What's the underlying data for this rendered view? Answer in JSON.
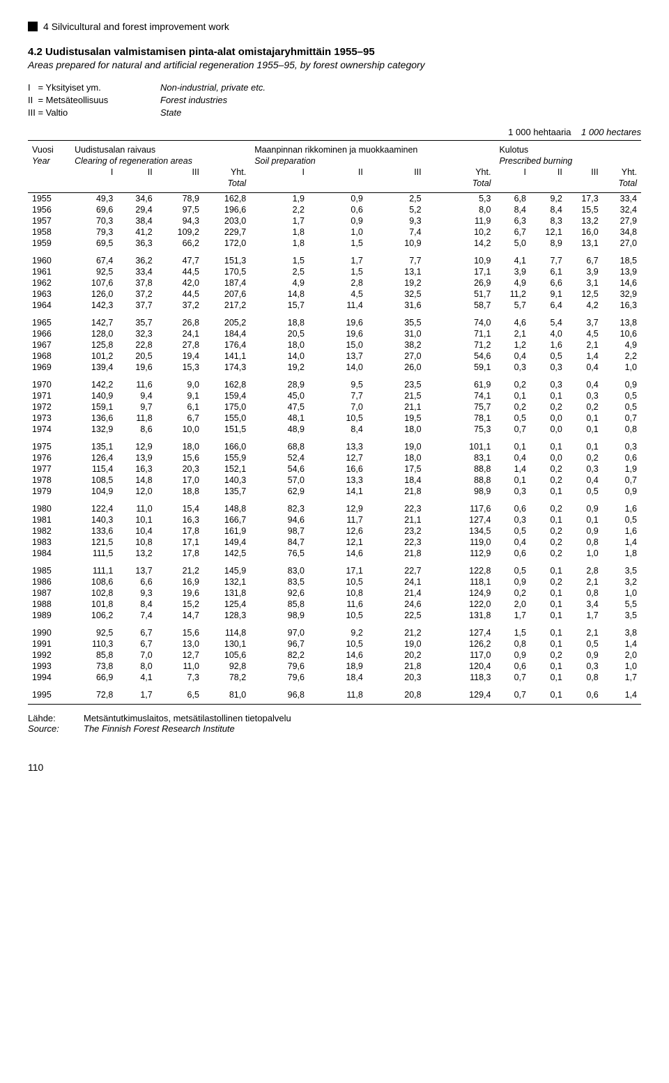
{
  "section": {
    "number": "4",
    "title": "Silvicultural and forest improvement work"
  },
  "table": {
    "number": "4.2",
    "title_fi": "Uudistusalan valmistamisen pinta-alat omistajaryhmittäin 1955–95",
    "title_en": "Areas prepared for natural and artificial regeneration 1955–95, by forest ownership category"
  },
  "legend": {
    "rows": [
      {
        "key": "I   = Yksityiset ym.",
        "val": "Non-industrial, private etc."
      },
      {
        "key": "II  = Metsäteollisuus",
        "val": "Forest industries"
      },
      {
        "key": "III = Valtio",
        "val": "State"
      }
    ]
  },
  "units": {
    "fi": "1 000 hehtaaria",
    "en": "1 000 hectares"
  },
  "header": {
    "year_fi": "Vuosi",
    "year_en": "Year",
    "group1_fi": "Uudistusalan raivaus",
    "group1_en": "Clearing of regeneration areas",
    "group2_fi": "Maanpinnan rikkominen ja muokkaaminen",
    "group2_en": "Soil preparation",
    "group3_fi": "Kulotus",
    "group3_en": "Prescribed burning",
    "cols": [
      "I",
      "II",
      "III",
      "Yht."
    ],
    "total_en": "Total"
  },
  "blocks": [
    [
      [
        "1955",
        "49,3",
        "34,6",
        "78,9",
        "162,8",
        "1,9",
        "0,9",
        "2,5",
        "5,3",
        "6,8",
        "9,2",
        "17,3",
        "33,4"
      ],
      [
        "1956",
        "69,6",
        "29,4",
        "97,5",
        "196,6",
        "2,2",
        "0,6",
        "5,2",
        "8,0",
        "8,4",
        "8,4",
        "15,5",
        "32,4"
      ],
      [
        "1957",
        "70,3",
        "38,4",
        "94,3",
        "203,0",
        "1,7",
        "0,9",
        "9,3",
        "11,9",
        "6,3",
        "8,3",
        "13,2",
        "27,9"
      ],
      [
        "1958",
        "79,3",
        "41,2",
        "109,2",
        "229,7",
        "1,8",
        "1,0",
        "7,4",
        "10,2",
        "6,7",
        "12,1",
        "16,0",
        "34,8"
      ],
      [
        "1959",
        "69,5",
        "36,3",
        "66,2",
        "172,0",
        "1,8",
        "1,5",
        "10,9",
        "14,2",
        "5,0",
        "8,9",
        "13,1",
        "27,0"
      ]
    ],
    [
      [
        "1960",
        "67,4",
        "36,2",
        "47,7",
        "151,3",
        "1,5",
        "1,7",
        "7,7",
        "10,9",
        "4,1",
        "7,7",
        "6,7",
        "18,5"
      ],
      [
        "1961",
        "92,5",
        "33,4",
        "44,5",
        "170,5",
        "2,5",
        "1,5",
        "13,1",
        "17,1",
        "3,9",
        "6,1",
        "3,9",
        "13,9"
      ],
      [
        "1962",
        "107,6",
        "37,8",
        "42,0",
        "187,4",
        "4,9",
        "2,8",
        "19,2",
        "26,9",
        "4,9",
        "6,6",
        "3,1",
        "14,6"
      ],
      [
        "1963",
        "126,0",
        "37,2",
        "44,5",
        "207,6",
        "14,8",
        "4,5",
        "32,5",
        "51,7",
        "11,2",
        "9,1",
        "12,5",
        "32,9"
      ],
      [
        "1964",
        "142,3",
        "37,7",
        "37,2",
        "217,2",
        "15,7",
        "11,4",
        "31,6",
        "58,7",
        "5,7",
        "6,4",
        "4,2",
        "16,3"
      ]
    ],
    [
      [
        "1965",
        "142,7",
        "35,7",
        "26,8",
        "205,2",
        "18,8",
        "19,6",
        "35,5",
        "74,0",
        "4,6",
        "5,4",
        "3,7",
        "13,8"
      ],
      [
        "1966",
        "128,0",
        "32,3",
        "24,1",
        "184,4",
        "20,5",
        "19,6",
        "31,0",
        "71,1",
        "2,1",
        "4,0",
        "4,5",
        "10,6"
      ],
      [
        "1967",
        "125,8",
        "22,8",
        "27,8",
        "176,4",
        "18,0",
        "15,0",
        "38,2",
        "71,2",
        "1,2",
        "1,6",
        "2,1",
        "4,9"
      ],
      [
        "1968",
        "101,2",
        "20,5",
        "19,4",
        "141,1",
        "14,0",
        "13,7",
        "27,0",
        "54,6",
        "0,4",
        "0,5",
        "1,4",
        "2,2"
      ],
      [
        "1969",
        "139,4",
        "19,6",
        "15,3",
        "174,3",
        "19,2",
        "14,0",
        "26,0",
        "59,1",
        "0,3",
        "0,3",
        "0,4",
        "1,0"
      ]
    ],
    [
      [
        "1970",
        "142,2",
        "11,6",
        "9,0",
        "162,8",
        "28,9",
        "9,5",
        "23,5",
        "61,9",
        "0,2",
        "0,3",
        "0,4",
        "0,9"
      ],
      [
        "1971",
        "140,9",
        "9,4",
        "9,1",
        "159,4",
        "45,0",
        "7,7",
        "21,5",
        "74,1",
        "0,1",
        "0,1",
        "0,3",
        "0,5"
      ],
      [
        "1972",
        "159,1",
        "9,7",
        "6,1",
        "175,0",
        "47,5",
        "7,0",
        "21,1",
        "75,7",
        "0,2",
        "0,2",
        "0,2",
        "0,5"
      ],
      [
        "1973",
        "136,6",
        "11,8",
        "6,7",
        "155,0",
        "48,1",
        "10,5",
        "19,5",
        "78,1",
        "0,5",
        "0,0",
        "0,1",
        "0,7"
      ],
      [
        "1974",
        "132,9",
        "8,6",
        "10,0",
        "151,5",
        "48,9",
        "8,4",
        "18,0",
        "75,3",
        "0,7",
        "0,0",
        "0,1",
        "0,8"
      ]
    ],
    [
      [
        "1975",
        "135,1",
        "12,9",
        "18,0",
        "166,0",
        "68,8",
        "13,3",
        "19,0",
        "101,1",
        "0,1",
        "0,1",
        "0,1",
        "0,3"
      ],
      [
        "1976",
        "126,4",
        "13,9",
        "15,6",
        "155,9",
        "52,4",
        "12,7",
        "18,0",
        "83,1",
        "0,4",
        "0,0",
        "0,2",
        "0,6"
      ],
      [
        "1977",
        "115,4",
        "16,3",
        "20,3",
        "152,1",
        "54,6",
        "16,6",
        "17,5",
        "88,8",
        "1,4",
        "0,2",
        "0,3",
        "1,9"
      ],
      [
        "1978",
        "108,5",
        "14,8",
        "17,0",
        "140,3",
        "57,0",
        "13,3",
        "18,4",
        "88,8",
        "0,1",
        "0,2",
        "0,4",
        "0,7"
      ],
      [
        "1979",
        "104,9",
        "12,0",
        "18,8",
        "135,7",
        "62,9",
        "14,1",
        "21,8",
        "98,9",
        "0,3",
        "0,1",
        "0,5",
        "0,9"
      ]
    ],
    [
      [
        "1980",
        "122,4",
        "11,0",
        "15,4",
        "148,8",
        "82,3",
        "12,9",
        "22,3",
        "117,6",
        "0,6",
        "0,2",
        "0,9",
        "1,6"
      ],
      [
        "1981",
        "140,3",
        "10,1",
        "16,3",
        "166,7",
        "94,6",
        "11,7",
        "21,1",
        "127,4",
        "0,3",
        "0,1",
        "0,1",
        "0,5"
      ],
      [
        "1982",
        "133,6",
        "10,4",
        "17,8",
        "161,9",
        "98,7",
        "12,6",
        "23,2",
        "134,5",
        "0,5",
        "0,2",
        "0,9",
        "1,6"
      ],
      [
        "1983",
        "121,5",
        "10,8",
        "17,1",
        "149,4",
        "84,7",
        "12,1",
        "22,3",
        "119,0",
        "0,4",
        "0,2",
        "0,8",
        "1,4"
      ],
      [
        "1984",
        "111,5",
        "13,2",
        "17,8",
        "142,5",
        "76,5",
        "14,6",
        "21,8",
        "112,9",
        "0,6",
        "0,2",
        "1,0",
        "1,8"
      ]
    ],
    [
      [
        "1985",
        "111,1",
        "13,7",
        "21,2",
        "145,9",
        "83,0",
        "17,1",
        "22,7",
        "122,8",
        "0,5",
        "0,1",
        "2,8",
        "3,5"
      ],
      [
        "1986",
        "108,6",
        "6,6",
        "16,9",
        "132,1",
        "83,5",
        "10,5",
        "24,1",
        "118,1",
        "0,9",
        "0,2",
        "2,1",
        "3,2"
      ],
      [
        "1987",
        "102,8",
        "9,3",
        "19,6",
        "131,8",
        "92,6",
        "10,8",
        "21,4",
        "124,9",
        "0,2",
        "0,1",
        "0,8",
        "1,0"
      ],
      [
        "1988",
        "101,8",
        "8,4",
        "15,2",
        "125,4",
        "85,8",
        "11,6",
        "24,6",
        "122,0",
        "2,0",
        "0,1",
        "3,4",
        "5,5"
      ],
      [
        "1989",
        "106,2",
        "7,4",
        "14,7",
        "128,3",
        "98,9",
        "10,5",
        "22,5",
        "131,8",
        "1,7",
        "0,1",
        "1,7",
        "3,5"
      ]
    ],
    [
      [
        "1990",
        "92,5",
        "6,7",
        "15,6",
        "114,8",
        "97,0",
        "9,2",
        "21,2",
        "127,4",
        "1,5",
        "0,1",
        "2,1",
        "3,8"
      ],
      [
        "1991",
        "110,3",
        "6,7",
        "13,0",
        "130,1",
        "96,7",
        "10,5",
        "19,0",
        "126,2",
        "0,8",
        "0,1",
        "0,5",
        "1,4"
      ],
      [
        "1992",
        "85,8",
        "7,0",
        "12,7",
        "105,6",
        "82,2",
        "14,6",
        "20,2",
        "117,0",
        "0,9",
        "0,2",
        "0,9",
        "2,0"
      ],
      [
        "1993",
        "73,8",
        "8,0",
        "11,0",
        "92,8",
        "79,6",
        "18,9",
        "21,8",
        "120,4",
        "0,6",
        "0,1",
        "0,3",
        "1,0"
      ],
      [
        "1994",
        "66,9",
        "4,1",
        "7,3",
        "78,2",
        "79,6",
        "18,4",
        "20,3",
        "118,3",
        "0,7",
        "0,1",
        "0,8",
        "1,7"
      ]
    ]
  ],
  "row1995": [
    "1995",
    "72,8",
    "1,7",
    "6,5",
    "81,0",
    "96,8",
    "11,8",
    "20,8",
    "129,4",
    "0,7",
    "0,1",
    "0,6",
    "1,4"
  ],
  "footer": {
    "label_fi": "Lähde:",
    "value_fi": "Metsäntutkimuslaitos, metsätilastollinen tietopalvelu",
    "label_en": "Source:",
    "value_en": "The Finnish Forest Research Institute"
  },
  "page_number": "110"
}
